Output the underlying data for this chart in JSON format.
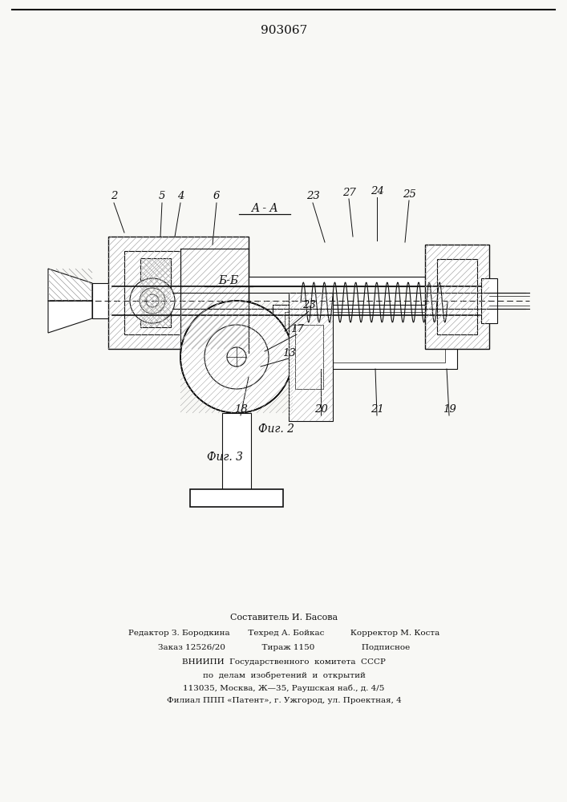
{
  "patent_number": "903067",
  "fig2_label": "Фиг. 2",
  "fig3_label": "Фиг. 3",
  "aa_label": "A - A",
  "bb_label": "б-б",
  "bg_color": "#f8f8f5",
  "line_color": "#111111",
  "footer_lines": [
    "Составитель И. Басова",
    "Редактор З. Бородкина       Техред А. Бойкас          Корректор М. Коста",
    "Заказ 12526/20              Тираж 1150                  Подписное",
    "ВНИИПИ  Государственного  комитета  СССР",
    "по  делам  изобретений  и  открытий",
    "113035, Москва, Ж—35, Раушская наб., д. 4/5",
    "Филиал ППП «Патент», г. Ужгород, ул. Проектная, 4"
  ]
}
